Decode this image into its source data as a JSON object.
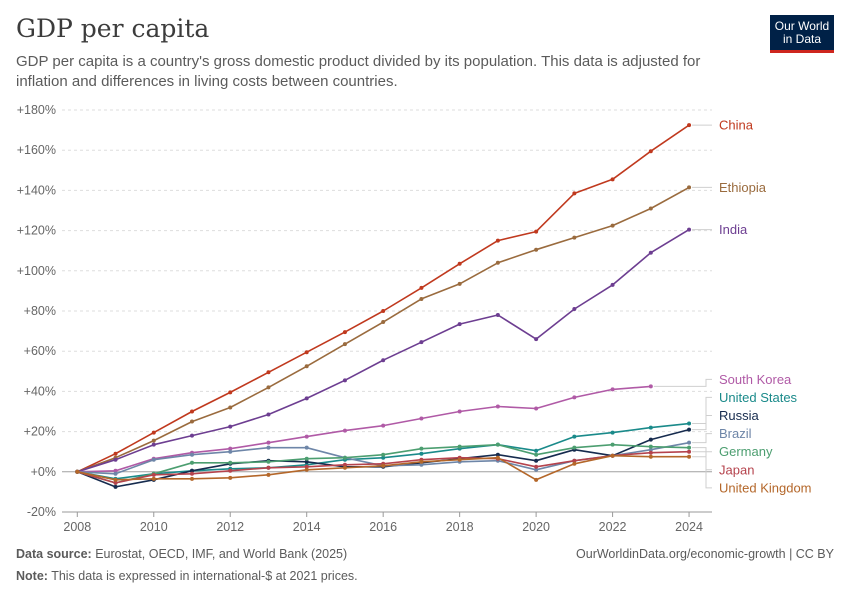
{
  "title": "GDP per capita",
  "subtitle": "GDP per capita is a country's gross domestic product divided by its population. This data is adjusted for inflation and differences in living costs between countries.",
  "logo": {
    "line1": "Our World",
    "line2": "in Data"
  },
  "footer": {
    "source_label": "Data source:",
    "source_text": "Eurostat, OECD, IMF, and World Bank (2025)",
    "note_label": "Note:",
    "note_text": "This data is expressed in international-$ at 2021 prices.",
    "credit": "OurWorldinData.org/economic-growth | CC BY"
  },
  "chart_data": {
    "type": "line",
    "title": "GDP per capita",
    "xlabel": "",
    "ylabel": "",
    "xlim": [
      2007.6,
      2024.6
    ],
    "ylim": [
      -20,
      180
    ],
    "x_ticks": [
      2008,
      2010,
      2012,
      2014,
      2016,
      2018,
      2020,
      2022,
      2024
    ],
    "y_ticks": [
      -20,
      0,
      20,
      40,
      60,
      80,
      100,
      120,
      140,
      160,
      180
    ],
    "y_tick_labels": [
      "-20%",
      "+0%",
      "+20%",
      "+40%",
      "+60%",
      "+80%",
      "+100%",
      "+120%",
      "+140%",
      "+160%",
      "+180%"
    ],
    "series": [
      {
        "name": "China",
        "color": "#c0391e",
        "x": [
          2008,
          2009,
          2010,
          2011,
          2012,
          2013,
          2014,
          2015,
          2016,
          2017,
          2018,
          2019,
          2020,
          2021,
          2022,
          2023,
          2024
        ],
        "values": [
          0,
          9,
          19.5,
          30,
          39.5,
          49.5,
          59.5,
          69.5,
          80,
          91.5,
          103.5,
          115,
          119.5,
          138.5,
          145.5,
          159.5,
          172.5
        ]
      },
      {
        "name": "Ethiopia",
        "color": "#9a6b3e",
        "x": [
          2008,
          2009,
          2010,
          2011,
          2012,
          2013,
          2014,
          2015,
          2016,
          2017,
          2018,
          2019,
          2020,
          2021,
          2022,
          2023,
          2024
        ],
        "values": [
          0,
          7,
          15.5,
          25,
          32,
          42,
          52.5,
          63.5,
          74.5,
          86,
          93.5,
          104,
          110.5,
          116.5,
          122.5,
          131,
          141.5
        ]
      },
      {
        "name": "India",
        "color": "#6d3e91",
        "x": [
          2008,
          2009,
          2010,
          2011,
          2012,
          2013,
          2014,
          2015,
          2016,
          2017,
          2018,
          2019,
          2020,
          2021,
          2022,
          2023,
          2024
        ],
        "values": [
          0,
          6,
          13.5,
          18,
          22.5,
          28.5,
          36.5,
          45.5,
          55.5,
          64.5,
          73.5,
          78,
          66,
          81,
          93,
          109,
          120.5
        ]
      },
      {
        "name": "South Korea",
        "color": "#b05aa6",
        "x": [
          2008,
          2009,
          2010,
          2011,
          2012,
          2013,
          2014,
          2015,
          2016,
          2017,
          2018,
          2019,
          2020,
          2021,
          2022,
          2023
        ],
        "values": [
          0,
          0.5,
          6.5,
          9.5,
          11.5,
          14.5,
          17.5,
          20.5,
          23,
          26.5,
          30,
          32.5,
          31.5,
          37,
          41,
          42.5
        ]
      },
      {
        "name": "United States",
        "color": "#1a8a8a",
        "x": [
          2008,
          2009,
          2010,
          2011,
          2012,
          2013,
          2014,
          2015,
          2016,
          2017,
          2018,
          2019,
          2020,
          2021,
          2022,
          2023,
          2024
        ],
        "values": [
          0,
          -3.5,
          -1,
          0.5,
          1.5,
          2,
          3.5,
          6,
          7,
          9,
          11.5,
          13.5,
          10.5,
          17.5,
          19.5,
          22,
          24
        ]
      },
      {
        "name": "Russia",
        "color": "#162b4e",
        "x": [
          2008,
          2009,
          2010,
          2011,
          2012,
          2013,
          2014,
          2015,
          2016,
          2017,
          2018,
          2019,
          2020,
          2021,
          2022,
          2023,
          2024
        ],
        "values": [
          0,
          -7.5,
          -4,
          0.5,
          4,
          5.5,
          5,
          2.5,
          2.5,
          4.5,
          6.5,
          8.5,
          5.5,
          11,
          8,
          16,
          21
        ]
      },
      {
        "name": "Brazil",
        "color": "#6e86a8",
        "x": [
          2008,
          2009,
          2010,
          2011,
          2012,
          2013,
          2014,
          2015,
          2016,
          2017,
          2018,
          2019,
          2020,
          2021,
          2022,
          2023,
          2024
        ],
        "values": [
          0,
          -1,
          6,
          8.5,
          10,
          12,
          12,
          7,
          3,
          3.5,
          5,
          5.5,
          1,
          5.5,
          8,
          11,
          14.5
        ]
      },
      {
        "name": "Germany",
        "color": "#4c9e70",
        "x": [
          2008,
          2009,
          2010,
          2011,
          2012,
          2013,
          2014,
          2015,
          2016,
          2017,
          2018,
          2019,
          2020,
          2021,
          2022,
          2023,
          2024
        ],
        "values": [
          0,
          -5.5,
          -1,
          4.5,
          4.5,
          5,
          6.5,
          7,
          8.5,
          11.5,
          12.5,
          13.5,
          8.5,
          12,
          13.5,
          12.5,
          12
        ]
      },
      {
        "name": "Japan",
        "color": "#b5434d",
        "x": [
          2008,
          2009,
          2010,
          2011,
          2012,
          2013,
          2014,
          2015,
          2016,
          2017,
          2018,
          2019,
          2020,
          2021,
          2022,
          2023,
          2024
        ],
        "values": [
          0,
          -5.5,
          -1.5,
          -1,
          0.5,
          2,
          2.5,
          3.5,
          4,
          6,
          7,
          6.5,
          2.5,
          5.5,
          8,
          9.5,
          10
        ]
      },
      {
        "name": "United Kingdom",
        "color": "#b4672a",
        "x": [
          2008,
          2009,
          2010,
          2011,
          2012,
          2013,
          2014,
          2015,
          2016,
          2017,
          2018,
          2019,
          2020,
          2021,
          2022,
          2023,
          2024
        ],
        "values": [
          0,
          -4,
          -3.5,
          -3.5,
          -3,
          -1.5,
          1,
          2,
          3,
          5,
          6,
          7,
          -4,
          4,
          8,
          7.5,
          7.5
        ]
      }
    ],
    "labels": [
      {
        "name": "China",
        "text": "China",
        "color": "#c0391e",
        "label_value": 172.5
      },
      {
        "name": "Ethiopia",
        "text": "Ethiopia",
        "color": "#9a6b3e",
        "label_value": 141.5
      },
      {
        "name": "India",
        "text": "India",
        "color": "#6d3e91",
        "label_value": 120.5
      },
      {
        "name": "South Korea",
        "text": "South Korea",
        "color": "#b05aa6",
        "label_value": 46
      },
      {
        "name": "United States",
        "text": "United States",
        "color": "#1a8a8a",
        "label_value": 37
      },
      {
        "name": "Russia",
        "text": "Russia",
        "color": "#162b4e",
        "label_value": 28
      },
      {
        "name": "Brazil",
        "text": "Brazil",
        "color": "#6e86a8",
        "label_value": 19
      },
      {
        "name": "Germany",
        "text": "Germany",
        "color": "#4c9e70",
        "label_value": 10
      },
      {
        "name": "Japan",
        "text": "Japan",
        "color": "#b5434d",
        "label_value": 1
      },
      {
        "name": "United Kingdom",
        "text": "United Kingdom",
        "color": "#b4672a",
        "label_value": -8
      }
    ]
  }
}
